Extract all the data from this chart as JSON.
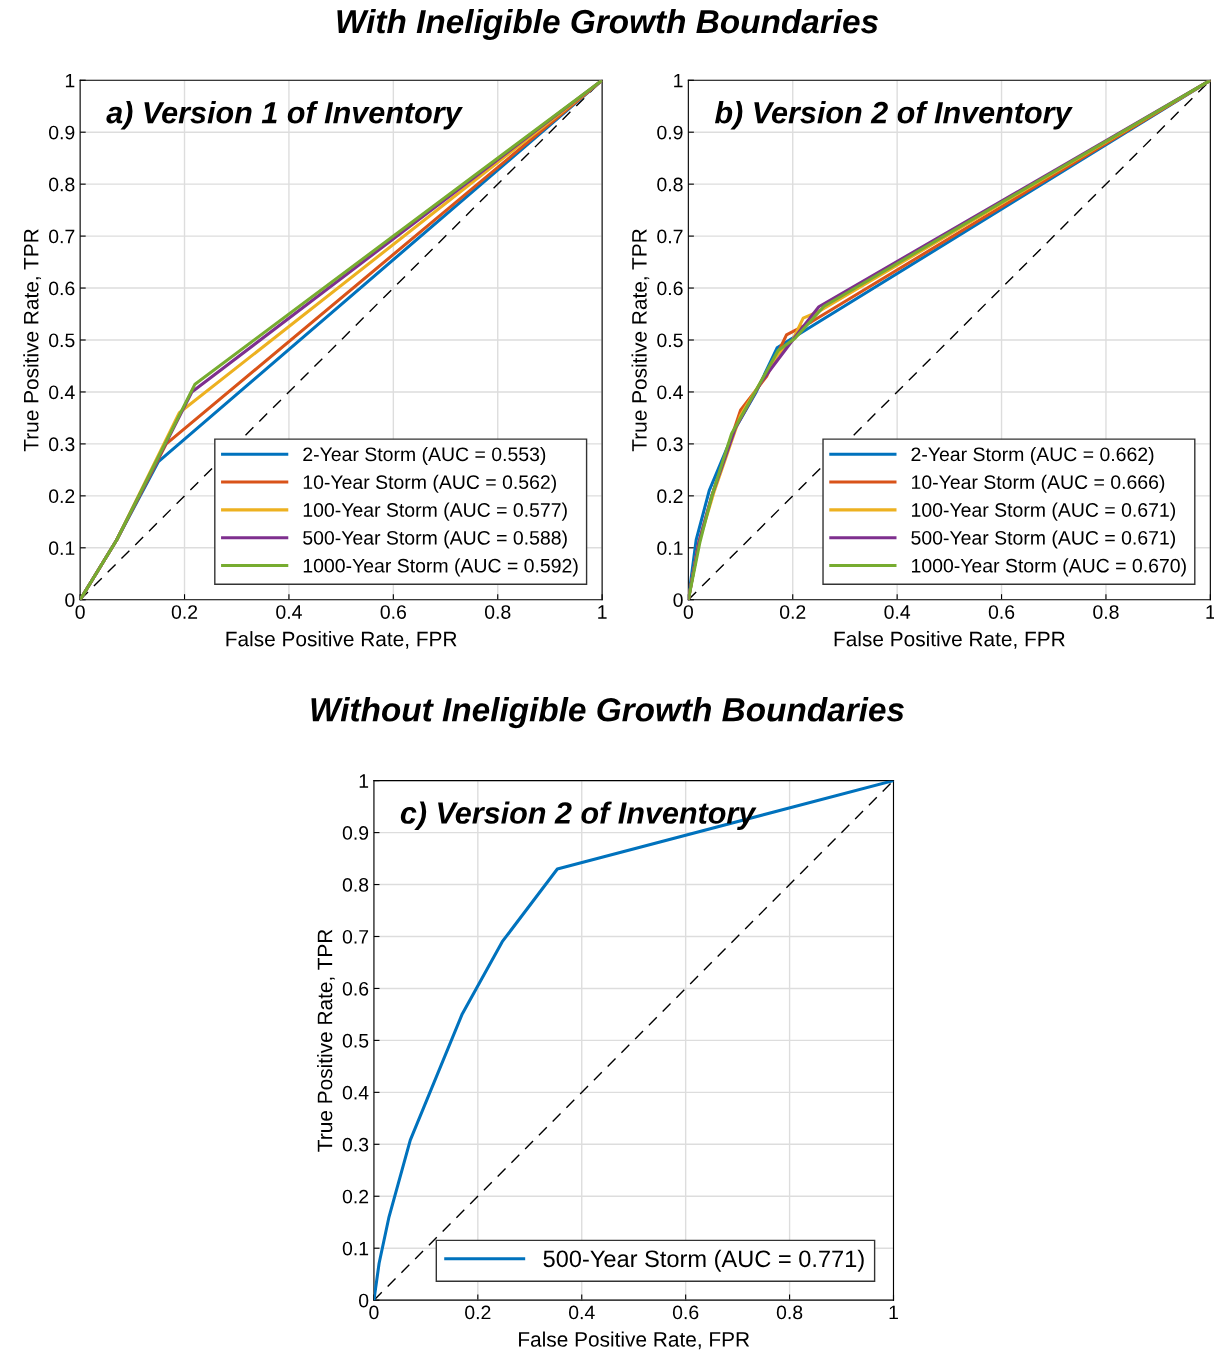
{
  "chart_data": [
    {
      "type": "line",
      "title": "a) Version 1 of Inventory",
      "annotations": [
        "With Ineligible Growth Boundaries"
      ],
      "xlabel": "False Positive Rate, FPR",
      "ylabel": "True Positive Rate, TPR",
      "xlim": [
        0,
        1
      ],
      "ylim": [
        0,
        1
      ],
      "xticks": [
        0,
        0.2,
        0.4,
        0.6,
        0.8,
        1
      ],
      "yticks": [
        0,
        0.1,
        0.2,
        0.3,
        0.4,
        0.5,
        0.6,
        0.7,
        0.8,
        0.9,
        1
      ],
      "grid": true,
      "legend": "bottom right",
      "line_style": "solid",
      "series": [
        {
          "name": "2-Year Storm (AUC = 0.553)",
          "color": "#0072bd",
          "x": [
            0,
            0.07,
            0.15,
            1
          ],
          "values": [
            0,
            0.115,
            0.266,
            1
          ]
        },
        {
          "name": "10-Year Storm (AUC = 0.562)",
          "color": "#d95319",
          "x": [
            0,
            0.07,
            0.165,
            1
          ],
          "values": [
            0,
            0.115,
            0.3,
            1
          ]
        },
        {
          "name": "100-Year Storm (AUC = 0.577)",
          "color": "#edb120",
          "x": [
            0,
            0.07,
            0.19,
            1
          ],
          "values": [
            0,
            0.115,
            0.36,
            1
          ]
        },
        {
          "name": "500-Year Storm (AUC = 0.588)",
          "color": "#7e2f8e",
          "x": [
            0,
            0.07,
            0.214,
            1
          ],
          "values": [
            0,
            0.115,
            0.4,
            1
          ]
        },
        {
          "name": "1000-Year Storm (AUC = 0.592)",
          "color": "#77ac30",
          "x": [
            0,
            0.07,
            0.22,
            1
          ],
          "values": [
            0,
            0.115,
            0.415,
            1
          ]
        },
        {
          "color": "#000000",
          "line_style": "dashed",
          "x": [
            0,
            1
          ],
          "values": [
            0,
            1
          ]
        }
      ]
    },
    {
      "type": "line",
      "title": "b) Version 2 of Inventory",
      "xlabel": "False Positive Rate, FPR",
      "ylabel": "True Positive Rate, TPR",
      "xlim": [
        0,
        1
      ],
      "ylim": [
        0,
        1
      ],
      "xticks": [
        0,
        0.2,
        0.4,
        0.6,
        0.8,
        1
      ],
      "yticks": [
        0,
        0.1,
        0.2,
        0.3,
        0.4,
        0.5,
        0.6,
        0.7,
        0.8,
        0.9,
        1
      ],
      "grid": true,
      "legend": "bottom right",
      "line_style": "solid",
      "series": [
        {
          "name": "2-Year Storm (AUC = 0.662)",
          "color": "#0072bd",
          "x": [
            0,
            0.015,
            0.04,
            0.09,
            0.13,
            0.17,
            0.21,
            1
          ],
          "values": [
            0,
            0.115,
            0.21,
            0.33,
            0.4,
            0.485,
            0.51,
            1
          ]
        },
        {
          "name": "10-Year Storm (AUC = 0.666)",
          "color": "#d95319",
          "x": [
            0,
            0.02,
            0.045,
            0.1,
            0.15,
            0.188,
            0.236,
            1
          ],
          "values": [
            0,
            0.11,
            0.2,
            0.365,
            0.43,
            0.51,
            0.535,
            1
          ]
        },
        {
          "name": "100-Year Storm (AUC = 0.671)",
          "color": "#edb120",
          "x": [
            0,
            0.02,
            0.05,
            0.1,
            0.17,
            0.2,
            0.22,
            0.25,
            1
          ],
          "values": [
            0,
            0.11,
            0.21,
            0.355,
            0.47,
            0.5,
            0.542,
            0.555,
            1
          ]
        },
        {
          "name": "500-Year Storm (AUC = 0.671)",
          "color": "#7e2f8e",
          "x": [
            0,
            0.02,
            0.045,
            0.09,
            0.14,
            0.2,
            0.25,
            1
          ],
          "values": [
            0,
            0.11,
            0.2,
            0.33,
            0.42,
            0.5,
            0.564,
            1
          ]
        },
        {
          "name": "1000-Year Storm (AUC = 0.670)",
          "color": "#77ac30",
          "x": [
            0,
            0.022,
            0.045,
            0.083,
            0.128,
            0.172,
            0.204,
            0.26,
            1
          ],
          "values": [
            0,
            0.11,
            0.2,
            0.32,
            0.4,
            0.48,
            0.503,
            0.565,
            1
          ]
        },
        {
          "color": "#000000",
          "line_style": "dashed",
          "x": [
            0,
            1
          ],
          "values": [
            0,
            1
          ]
        }
      ]
    },
    {
      "type": "line",
      "title": "c) Version 2 of Inventory",
      "annotations": [
        "Without Ineligible Growth Boundaries"
      ],
      "xlabel": "False Positive Rate, FPR",
      "ylabel": "True Positive Rate, TPR",
      "xlim": [
        0,
        1
      ],
      "ylim": [
        0,
        1
      ],
      "xticks": [
        0,
        0.2,
        0.4,
        0.6,
        0.8,
        1
      ],
      "yticks": [
        0,
        0.1,
        0.2,
        0.3,
        0.4,
        0.5,
        0.6,
        0.7,
        0.8,
        0.9,
        1
      ],
      "grid": true,
      "legend": "bottom right",
      "line_style": "solid",
      "series": [
        {
          "name": "500-Year Storm (AUC = 0.771)",
          "color": "#0072bd",
          "x": [
            0,
            0.01,
            0.029,
            0.07,
            0.17,
            0.247,
            0.353,
            1
          ],
          "values": [
            0,
            0.071,
            0.16,
            0.308,
            0.551,
            0.69,
            0.83,
            1
          ]
        },
        {
          "color": "#000000",
          "line_style": "dashed",
          "x": [
            0,
            1
          ],
          "values": [
            0,
            1
          ]
        }
      ]
    }
  ]
}
